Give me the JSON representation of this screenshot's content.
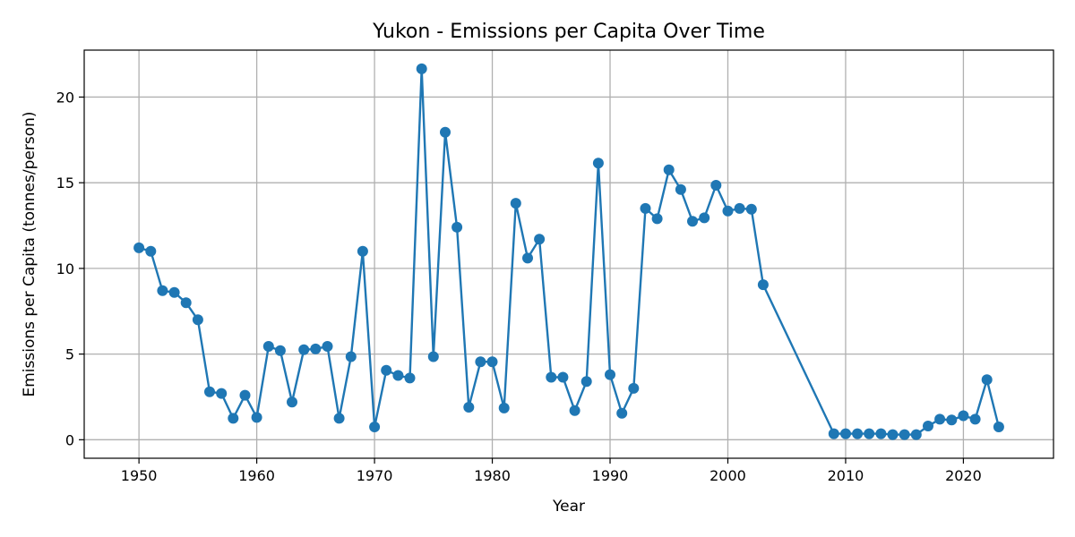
{
  "chart_data": {
    "type": "line",
    "title": "Yukon - Emissions per Capita Over Time",
    "xlabel": "Year",
    "ylabel": "Emissions per Capita (tonnes/person)",
    "xlim": [
      1945.35,
      2027.65
    ],
    "ylim": [
      -1.08,
      22.74
    ],
    "xticks": [
      1950,
      1960,
      1970,
      1980,
      1990,
      2000,
      2010,
      2020
    ],
    "yticks": [
      0,
      5,
      10,
      15,
      20
    ],
    "grid": true,
    "line_color": "#1f77b4",
    "marker": "circle",
    "series": [
      {
        "name": "",
        "x": [
          1950,
          1951,
          1952,
          1953,
          1954,
          1955,
          1956,
          1957,
          1958,
          1959,
          1960,
          1961,
          1962,
          1963,
          1964,
          1965,
          1966,
          1967,
          1968,
          1969,
          1970,
          1971,
          1972,
          1973,
          1974,
          1975,
          1976,
          1977,
          1978,
          1979,
          1980,
          1981,
          1982,
          1983,
          1984,
          1985,
          1986,
          1987,
          1988,
          1989,
          1990,
          1991,
          1992,
          1993,
          1994,
          1995,
          1996,
          1997,
          1998,
          1999,
          2000,
          2001,
          2002,
          2003,
          2009,
          2010,
          2011,
          2012,
          2013,
          2014,
          2015,
          2016,
          2017,
          2018,
          2019,
          2020,
          2021,
          2022,
          2023
        ],
        "y": [
          11.2,
          11.0,
          8.7,
          8.6,
          8.0,
          7.0,
          2.8,
          2.7,
          1.25,
          2.6,
          1.3,
          5.45,
          5.2,
          2.2,
          5.25,
          5.3,
          5.45,
          1.25,
          4.85,
          11.0,
          0.75,
          4.05,
          3.75,
          3.6,
          21.65,
          4.85,
          17.95,
          12.4,
          1.9,
          4.55,
          4.55,
          1.85,
          13.8,
          10.6,
          11.7,
          3.65,
          3.65,
          1.7,
          3.4,
          16.15,
          3.8,
          1.55,
          3.0,
          13.5,
          12.9,
          15.75,
          14.6,
          12.75,
          12.95,
          14.85,
          13.35,
          13.5,
          13.45,
          9.05,
          0.35,
          0.35,
          0.35,
          0.35,
          0.35,
          0.3,
          0.3,
          0.3,
          0.8,
          1.2,
          1.15,
          1.4,
          1.2,
          3.5,
          0.75
        ]
      }
    ]
  }
}
